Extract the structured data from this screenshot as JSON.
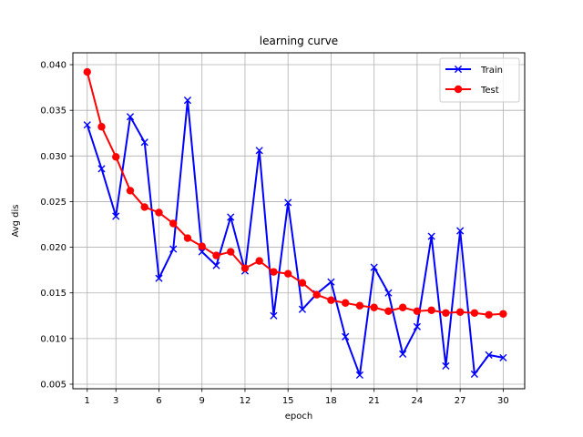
{
  "chart_data": {
    "type": "line",
    "title": "learning curve",
    "xlabel": "epoch",
    "ylabel": "Avg dis",
    "xlim": [
      0.0,
      31.5
    ],
    "ylim": [
      0.0045,
      0.0413
    ],
    "xticks": [
      1,
      3,
      6,
      9,
      12,
      15,
      18,
      21,
      24,
      27,
      30
    ],
    "yticks": [
      0.005,
      0.01,
      0.015,
      0.02,
      0.025,
      0.03,
      0.035,
      0.04
    ],
    "ytick_labels": [
      "0.005",
      "0.010",
      "0.015",
      "0.020",
      "0.025",
      "0.030",
      "0.035",
      "0.040"
    ],
    "grid": true,
    "legend_position": "top-right",
    "x": [
      1,
      2,
      3,
      4,
      5,
      6,
      7,
      8,
      9,
      10,
      11,
      12,
      13,
      14,
      15,
      16,
      17,
      18,
      19,
      20,
      21,
      22,
      23,
      24,
      25,
      26,
      27,
      28,
      29,
      30
    ],
    "series": [
      {
        "name": "Train",
        "color": "#0000ff",
        "marker": "x",
        "values": [
          0.0334,
          0.0286,
          0.0234,
          0.0343,
          0.0315,
          0.0166,
          0.0198,
          0.0361,
          0.0195,
          0.018,
          0.0233,
          0.0174,
          0.0306,
          0.0125,
          0.0249,
          0.0132,
          0.0149,
          0.0162,
          0.0102,
          0.006,
          0.0178,
          0.015,
          0.0083,
          0.0113,
          0.0212,
          0.007,
          0.0218,
          0.0061,
          0.0082,
          0.0079
        ]
      },
      {
        "name": "Test",
        "color": "#ff0000",
        "marker": "o",
        "values": [
          0.0392,
          0.0332,
          0.0299,
          0.0262,
          0.0244,
          0.0238,
          0.0226,
          0.021,
          0.0201,
          0.0191,
          0.0195,
          0.0177,
          0.0185,
          0.0173,
          0.0171,
          0.0161,
          0.0148,
          0.0142,
          0.0139,
          0.0136,
          0.0134,
          0.013,
          0.0134,
          0.013,
          0.0131,
          0.0128,
          0.0129,
          0.0128,
          0.0126,
          0.0127
        ]
      }
    ]
  }
}
